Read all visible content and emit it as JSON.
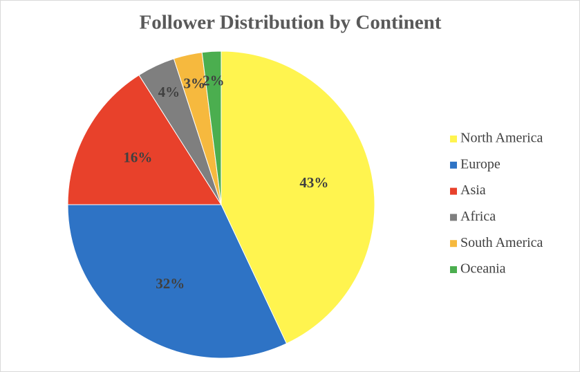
{
  "chart_data": {
    "type": "pie",
    "title": "Follower Distribution by Continent",
    "categories": [
      "North America",
      "Europe",
      "Asia",
      "Africa",
      "South America",
      "Oceania"
    ],
    "values": [
      43,
      32,
      16,
      4,
      3,
      2
    ],
    "value_labels": [
      "43%",
      "32%",
      "16%",
      "4%",
      "3%",
      "2%"
    ],
    "colors": [
      "#FFF44F",
      "#2E73C5",
      "#E8412B",
      "#7F7F7F",
      "#F6B93E",
      "#4BAE4F"
    ],
    "legend": "right"
  }
}
